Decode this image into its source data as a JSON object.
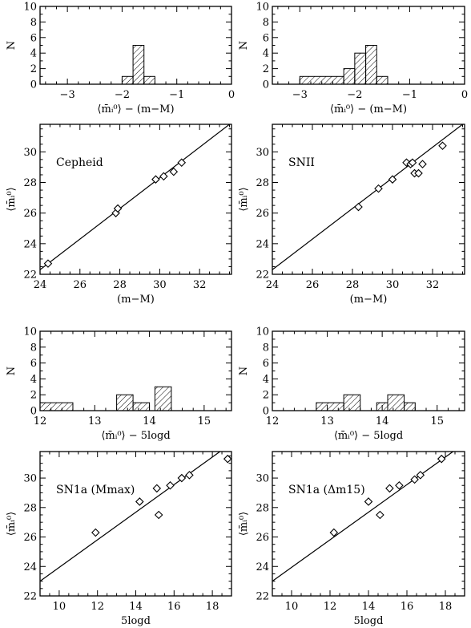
{
  "chart_data": [
    {
      "id": "hist-cepheid",
      "type": "bar",
      "bins": [
        [
          -2.0,
          -1.8,
          1
        ],
        [
          -1.8,
          -1.6,
          5
        ],
        [
          -1.6,
          -1.4,
          1
        ]
      ],
      "xlim": [
        -3.5,
        0
      ],
      "ylim": [
        0,
        10
      ],
      "xticks": [
        -3,
        -2,
        -1,
        0
      ],
      "yticks": [
        0,
        2,
        4,
        6,
        8,
        10
      ],
      "xlabel": "⟨m̄ᵢ⁰⟩ − (m−M)",
      "ylabel": "N",
      "title": ""
    },
    {
      "id": "hist-snii",
      "type": "bar",
      "bins": [
        [
          -3.0,
          -2.2,
          1
        ],
        [
          -2.2,
          -2.0,
          2
        ],
        [
          -2.0,
          -1.8,
          4
        ],
        [
          -1.8,
          -1.6,
          5
        ],
        [
          -1.6,
          -1.4,
          1
        ]
      ],
      "xlim": [
        -3.5,
        0
      ],
      "ylim": [
        0,
        10
      ],
      "xticks": [
        -3,
        -2,
        -1,
        0
      ],
      "yticks": [
        0,
        2,
        4,
        6,
        8,
        10
      ],
      "xlabel": "⟨m̄ᵢ⁰⟩ − (m−M)",
      "ylabel": "N",
      "title": ""
    },
    {
      "id": "scatter-cepheid",
      "type": "scatter",
      "label": "Cepheid",
      "points": [
        [
          24.4,
          22.7
        ],
        [
          27.8,
          26.0
        ],
        [
          27.9,
          26.3
        ],
        [
          29.8,
          28.2
        ],
        [
          30.2,
          28.4
        ],
        [
          30.7,
          28.7
        ],
        [
          31.1,
          29.3
        ]
      ],
      "line": [
        [
          24,
          22.3
        ],
        [
          33.6,
          31.9
        ]
      ],
      "xlim": [
        24,
        33.6
      ],
      "ylim": [
        22,
        31.8
      ],
      "xticks": [
        24,
        26,
        28,
        30,
        32
      ],
      "yticks": [
        22,
        24,
        26,
        28,
        30
      ],
      "xlabel": "(m−M)",
      "ylabel": "⟨m̄ᵢ⁰⟩"
    },
    {
      "id": "scatter-snii",
      "type": "scatter",
      "label": "SNII",
      "points": [
        [
          28.3,
          26.4
        ],
        [
          29.3,
          27.6
        ],
        [
          30.0,
          28.2
        ],
        [
          30.7,
          29.3
        ],
        [
          30.9,
          29.2
        ],
        [
          31.0,
          29.3
        ],
        [
          31.1,
          28.6
        ],
        [
          31.3,
          28.6
        ],
        [
          31.5,
          29.2
        ],
        [
          32.5,
          30.4
        ]
      ],
      "line": [
        [
          24,
          22.3
        ],
        [
          33.6,
          31.9
        ]
      ],
      "xlim": [
        24,
        33.6
      ],
      "ylim": [
        22,
        31.8
      ],
      "xticks": [
        24,
        26,
        28,
        30,
        32
      ],
      "yticks": [
        22,
        24,
        26,
        28,
        30
      ],
      "xlabel": "(m−M)",
      "ylabel": "⟨m̄ᵢ⁰⟩"
    },
    {
      "id": "hist-sn1a-mmax",
      "type": "bar",
      "bins": [
        [
          12.0,
          12.6,
          1
        ],
        [
          13.4,
          13.7,
          2
        ],
        [
          13.7,
          14.0,
          1
        ],
        [
          14.1,
          14.4,
          3
        ]
      ],
      "xlim": [
        12,
        15.5
      ],
      "ylim": [
        0,
        10
      ],
      "xticks": [
        12,
        13,
        14,
        15
      ],
      "yticks": [
        0,
        2,
        4,
        6,
        8,
        10
      ],
      "xlabel": "⟨m̄ᵢ⁰⟩ − 5logd",
      "ylabel": "N",
      "title": ""
    },
    {
      "id": "hist-sn1a-dm15",
      "type": "bar",
      "bins": [
        [
          12.8,
          13.3,
          1
        ],
        [
          13.3,
          13.6,
          2
        ],
        [
          13.9,
          14.1,
          1
        ],
        [
          14.1,
          14.4,
          2
        ],
        [
          14.4,
          14.6,
          1
        ]
      ],
      "xlim": [
        12,
        15.5
      ],
      "ylim": [
        0,
        10
      ],
      "xticks": [
        12,
        13,
        14,
        15
      ],
      "yticks": [
        0,
        2,
        4,
        6,
        8,
        10
      ],
      "xlabel": "⟨m̄ᵢ⁰⟩ − 5logd",
      "ylabel": "N",
      "title": ""
    },
    {
      "id": "scatter-sn1a-mmax",
      "type": "scatter",
      "label": "SN1a (Mmax)",
      "points": [
        [
          11.9,
          26.3
        ],
        [
          14.2,
          28.4
        ],
        [
          15.1,
          29.3
        ],
        [
          15.2,
          27.5
        ],
        [
          15.8,
          29.5
        ],
        [
          16.4,
          30.0
        ],
        [
          16.8,
          30.2
        ],
        [
          18.8,
          31.3
        ]
      ],
      "line": [
        [
          9,
          23.0
        ],
        [
          18.4,
          31.8
        ]
      ],
      "xlim": [
        9,
        19
      ],
      "ylim": [
        22,
        31.8
      ],
      "xticks": [
        10,
        12,
        14,
        16,
        18
      ],
      "yticks": [
        22,
        24,
        26,
        28,
        30
      ],
      "xlabel": "5logd",
      "ylabel": "⟨m̄ᵢ⁰⟩"
    },
    {
      "id": "scatter-sn1a-dm15",
      "type": "scatter",
      "label": "SN1a (Δm15)",
      "points": [
        [
          12.2,
          26.3
        ],
        [
          14.0,
          28.4
        ],
        [
          14.6,
          27.5
        ],
        [
          15.1,
          29.3
        ],
        [
          15.6,
          29.5
        ],
        [
          16.4,
          29.9
        ],
        [
          16.7,
          30.2
        ],
        [
          17.8,
          31.3
        ]
      ],
      "line": [
        [
          9,
          23.0
        ],
        [
          18.4,
          31.8
        ]
      ],
      "xlim": [
        9,
        19
      ],
      "ylim": [
        22,
        31.8
      ],
      "xticks": [
        10,
        12,
        14,
        16,
        18
      ],
      "yticks": [
        22,
        24,
        26,
        28,
        30
      ],
      "xlabel": "5logd",
      "ylabel": "⟨m̄ᵢ⁰⟩"
    }
  ]
}
